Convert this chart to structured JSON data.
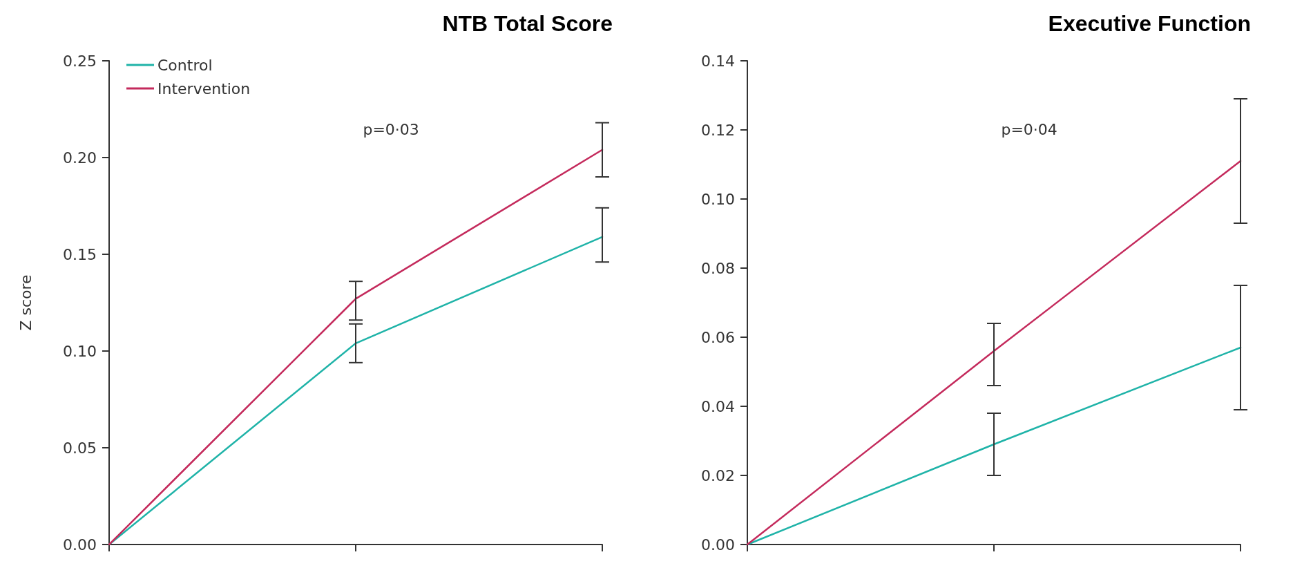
{
  "chart_data": [
    {
      "type": "line",
      "title": "NTB Total Score",
      "ylabel": "Z score",
      "categories": [
        null,
        null,
        null
      ],
      "series": [
        {
          "name": "Control",
          "color": "#1fb3a8",
          "values": [
            0,
            0.104,
            0.159
          ],
          "errors": [
            null,
            [
              0.094,
              0.114
            ],
            [
              0.146,
              0.174
            ]
          ]
        },
        {
          "name": "Intervention",
          "color": "#c42a5c",
          "values": [
            0,
            0.127,
            0.204
          ],
          "errors": [
            null,
            [
              0.116,
              0.136
            ],
            [
              0.19,
              0.218
            ]
          ]
        }
      ],
      "ylim": [
        0,
        0.25
      ],
      "yticks": [
        {
          "value": 0,
          "label": "0.00"
        },
        {
          "value": 0.05,
          "label": "0.05"
        },
        {
          "value": 0.1,
          "label": "0.10"
        },
        {
          "value": 0.15,
          "label": "0.15"
        },
        {
          "value": 0.2,
          "label": "0.20"
        },
        {
          "value": 0.25,
          "label": "0.25"
        }
      ],
      "annotations": [
        "p=0·03"
      ],
      "legend": "top left",
      "grid": false,
      "marker": "none",
      "line_style": "solid",
      "tick_labels": "y"
    },
    {
      "type": "line",
      "title": "Executive Function",
      "categories": [
        null,
        null,
        null
      ],
      "series": [
        {
          "color": "#1fb3a8",
          "values": [
            0,
            0.029,
            0.057
          ],
          "errors": [
            null,
            [
              0.02,
              0.038
            ],
            [
              0.039,
              0.075
            ]
          ]
        },
        {
          "color": "#c42a5c",
          "values": [
            0,
            0.056,
            0.111
          ],
          "errors": [
            null,
            [
              0.046,
              0.064
            ],
            [
              0.093,
              0.129
            ]
          ]
        }
      ],
      "ylim": [
        0,
        0.14
      ],
      "yticks": [
        {
          "value": 0,
          "label": "0.00"
        },
        {
          "value": 0.02,
          "label": "0.02"
        },
        {
          "value": 0.04,
          "label": "0.04"
        },
        {
          "value": 0.06,
          "label": "0.06"
        },
        {
          "value": 0.08,
          "label": "0.08"
        },
        {
          "value": 0.1,
          "label": "0.10"
        },
        {
          "value": 0.12,
          "label": "0.12"
        },
        {
          "value": 0.14,
          "label": "0.14"
        }
      ],
      "annotations": [
        "p=0·04"
      ],
      "legend": false,
      "grid": false,
      "marker": "none",
      "line_style": "solid",
      "tick_labels": "y"
    }
  ]
}
